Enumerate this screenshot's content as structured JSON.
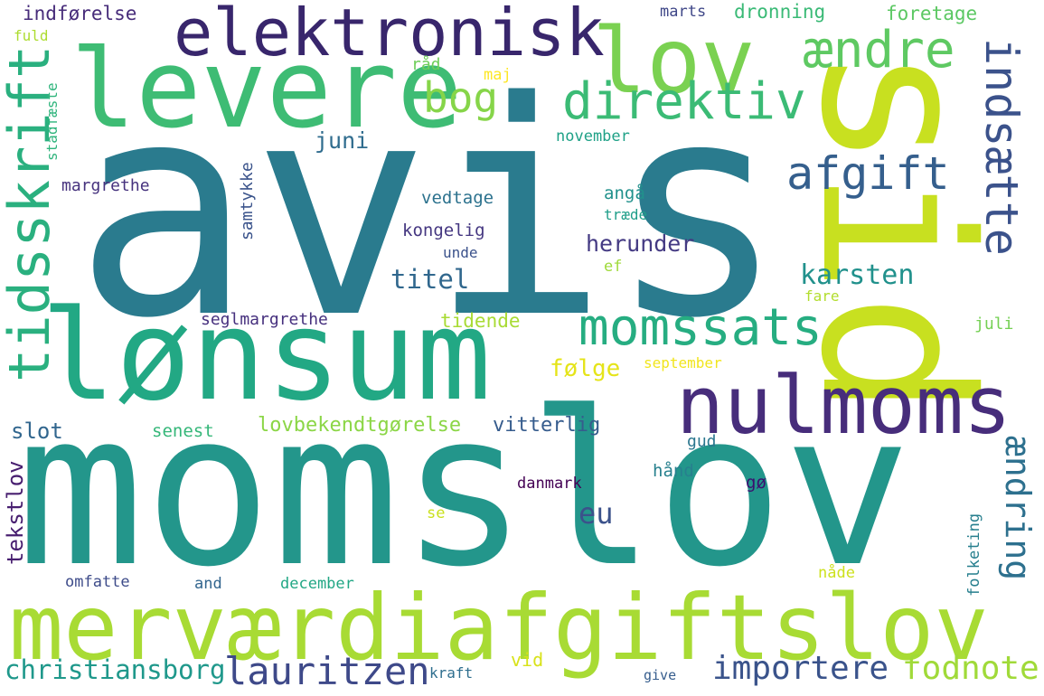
{
  "words": [
    {
      "text": "avis",
      "color": "#2a7b8e"
    },
    {
      "text": "momslov",
      "color": "#23968b"
    },
    {
      "text": "sid",
      "color": "#c8e020"
    },
    {
      "text": "lønsum",
      "color": "#22a884"
    },
    {
      "text": "levere",
      "color": "#3ebc74"
    },
    {
      "text": "merværdiafgiftslov",
      "color": "#a8db34"
    },
    {
      "text": "elektronisk",
      "color": "#38266c"
    },
    {
      "text": "lov",
      "color": "#7ad151"
    },
    {
      "text": "nulmoms",
      "color": "#472d7b"
    },
    {
      "text": "tidsskrift",
      "color": "#2ab07f"
    },
    {
      "text": "ændre",
      "color": "#5ec962"
    },
    {
      "text": "direktiv",
      "color": "#3bbb75"
    },
    {
      "text": "momssats",
      "color": "#26ad81"
    },
    {
      "text": "indsætte",
      "color": "#3b528b"
    },
    {
      "text": "afgift",
      "color": "#355f8d"
    },
    {
      "text": "bog",
      "color": "#86d549"
    },
    {
      "text": "ændring",
      "color": "#2d708e"
    },
    {
      "text": "lauritzen",
      "color": "#3e4989"
    },
    {
      "text": "importere",
      "color": "#3a538b"
    },
    {
      "text": "fodnote",
      "color": "#a0da39"
    },
    {
      "text": "christiansborg",
      "color": "#1f988b"
    },
    {
      "text": "karsten",
      "color": "#21918c"
    },
    {
      "text": "eu",
      "color": "#3b528b"
    },
    {
      "text": "titel",
      "color": "#30678d"
    },
    {
      "text": "herunder",
      "color": "#443a83"
    },
    {
      "text": "juni",
      "color": "#2f6c8e"
    },
    {
      "text": "tekstlov",
      "color": "#481f70"
    },
    {
      "text": "følge",
      "color": "#e5e419"
    },
    {
      "text": "lovbekendtgørelse",
      "color": "#8bd646"
    },
    {
      "text": "vitterlig",
      "color": "#365c8d"
    },
    {
      "text": "slot",
      "color": "#31668e"
    },
    {
      "text": "indførelse",
      "color": "#472c7a"
    },
    {
      "text": "dronning",
      "color": "#3aba76"
    },
    {
      "text": "foretage",
      "color": "#5cc863"
    },
    {
      "text": "marts",
      "color": "#3f4788"
    },
    {
      "text": "råd",
      "color": "#6ece58"
    },
    {
      "text": "maj",
      "color": "#fde725"
    },
    {
      "text": "fuld",
      "color": "#addc30"
    },
    {
      "text": "stadfæste",
      "color": "#2fb47c"
    },
    {
      "text": "november",
      "color": "#1fa187"
    },
    {
      "text": "margrethe",
      "color": "#46327e"
    },
    {
      "text": "samtykke",
      "color": "#3a538b"
    },
    {
      "text": "vedtage",
      "color": "#2c728e"
    },
    {
      "text": "kongelig",
      "color": "#453781"
    },
    {
      "text": "angå",
      "color": "#21918c"
    },
    {
      "text": "træde",
      "color": "#1f9e89"
    },
    {
      "text": "unde",
      "color": "#3b528b"
    },
    {
      "text": "ef",
      "color": "#9fda3a"
    },
    {
      "text": "fare",
      "color": "#b2dd2d"
    },
    {
      "text": "seglmargrethe",
      "color": "#46307e"
    },
    {
      "text": "tidende",
      "color": "#a8db34"
    },
    {
      "text": "juli",
      "color": "#75d054"
    },
    {
      "text": "september",
      "color": "#f1e51d"
    },
    {
      "text": "senest",
      "color": "#35b779"
    },
    {
      "text": "gud",
      "color": "#2a768e"
    },
    {
      "text": "hånd",
      "color": "#27808e"
    },
    {
      "text": "gø",
      "color": "#3b0f70"
    },
    {
      "text": "danmark",
      "color": "#440154"
    },
    {
      "text": "se",
      "color": "#cae11f"
    },
    {
      "text": "folketing",
      "color": "#277f8e"
    },
    {
      "text": "omfatte",
      "color": "#3e4c8a"
    },
    {
      "text": "and",
      "color": "#32658e"
    },
    {
      "text": "december",
      "color": "#22a785"
    },
    {
      "text": "nåde",
      "color": "#cde11d"
    },
    {
      "text": "vid",
      "color": "#d8e219"
    },
    {
      "text": "kraft",
      "color": "#2e6e8e"
    },
    {
      "text": "give",
      "color": "#365d8d"
    }
  ]
}
